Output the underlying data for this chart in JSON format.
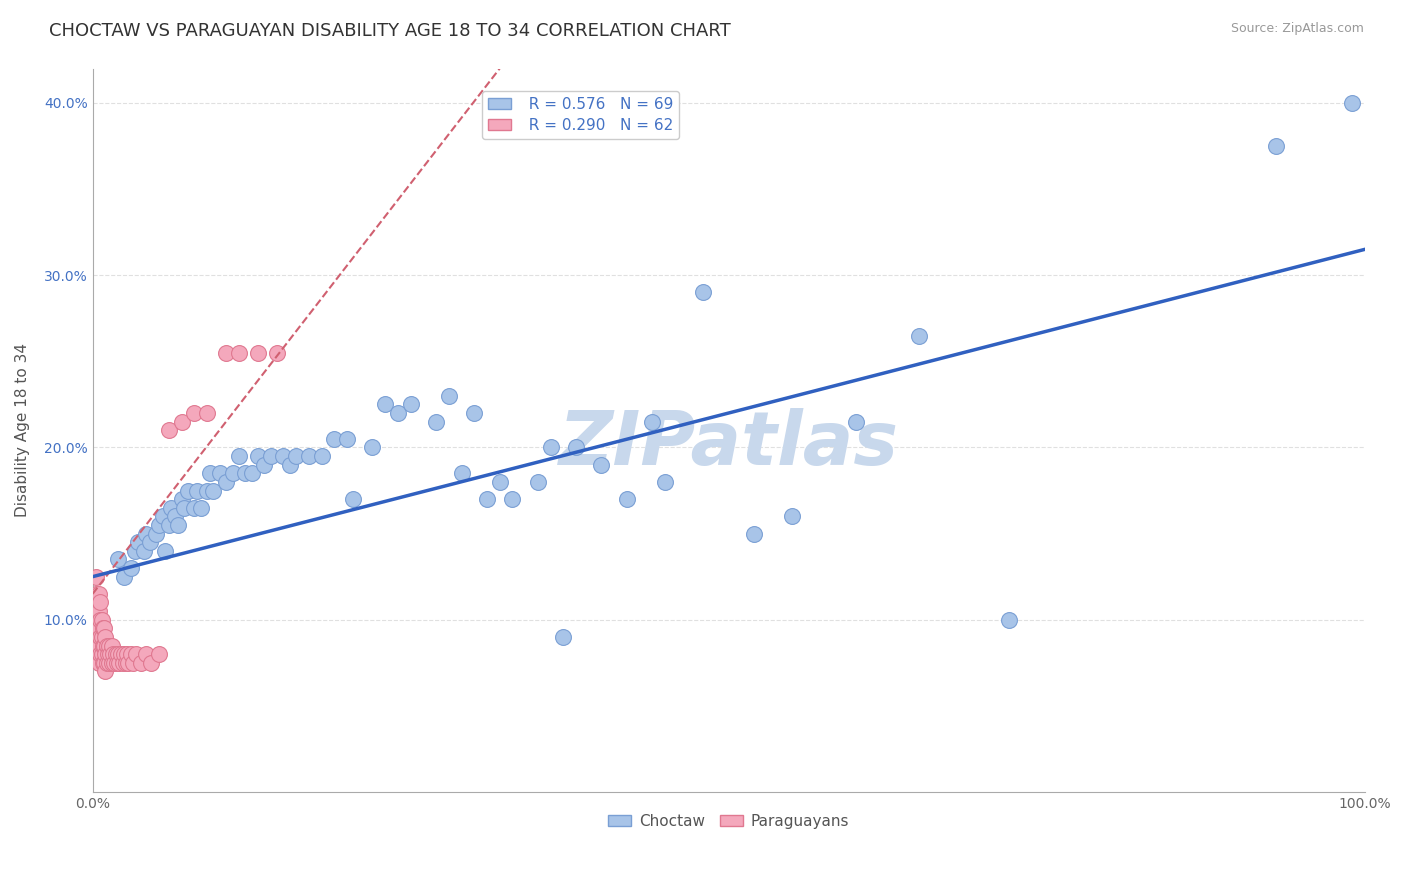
{
  "title": "CHOCTAW VS PARAGUAYAN DISABILITY AGE 18 TO 34 CORRELATION CHART",
  "source_text": "Source: ZipAtlas.com",
  "ylabel": "Disability Age 18 to 34",
  "xlim": [
    0,
    1.0
  ],
  "ylim": [
    0,
    0.42
  ],
  "xticks": [
    0.0,
    0.1,
    0.2,
    0.3,
    0.4,
    0.5,
    0.6,
    0.7,
    0.8,
    0.9,
    1.0
  ],
  "xticklabels": [
    "0.0%",
    "",
    "",
    "",
    "",
    "",
    "",
    "",
    "",
    "",
    "100.0%"
  ],
  "ytick_positions": [
    0.0,
    0.1,
    0.2,
    0.3,
    0.4
  ],
  "yticklabels": [
    "",
    "10.0%",
    "20.0%",
    "30.0%",
    "40.0%"
  ],
  "choctaw_color": "#a8c4e8",
  "paraguayan_color": "#f4a8bc",
  "choctaw_edge": "#7a9fd4",
  "paraguayan_edge": "#e07890",
  "trend_blue": "#3060c0",
  "trend_pink": "#d06070",
  "watermark_color": "#c8d8ec",
  "legend_r1": "R = 0.576",
  "legend_n1": "N = 69",
  "legend_r2": "R = 0.290",
  "legend_n2": "N = 62",
  "choctaw_label": "Choctaw",
  "paraguayan_label": "Paraguayans",
  "choctaw_x": [
    0.02,
    0.025,
    0.03,
    0.033,
    0.036,
    0.04,
    0.042,
    0.045,
    0.05,
    0.052,
    0.055,
    0.057,
    0.06,
    0.062,
    0.065,
    0.067,
    0.07,
    0.072,
    0.075,
    0.08,
    0.082,
    0.085,
    0.09,
    0.092,
    0.095,
    0.1,
    0.105,
    0.11,
    0.115,
    0.12,
    0.125,
    0.13,
    0.135,
    0.14,
    0.15,
    0.155,
    0.16,
    0.17,
    0.18,
    0.19,
    0.2,
    0.205,
    0.22,
    0.23,
    0.24,
    0.25,
    0.27,
    0.28,
    0.29,
    0.3,
    0.31,
    0.32,
    0.33,
    0.35,
    0.36,
    0.37,
    0.38,
    0.4,
    0.42,
    0.44,
    0.45,
    0.48,
    0.52,
    0.55,
    0.6,
    0.65,
    0.72,
    0.93,
    0.99
  ],
  "choctaw_y": [
    0.135,
    0.125,
    0.13,
    0.14,
    0.145,
    0.14,
    0.15,
    0.145,
    0.15,
    0.155,
    0.16,
    0.14,
    0.155,
    0.165,
    0.16,
    0.155,
    0.17,
    0.165,
    0.175,
    0.165,
    0.175,
    0.165,
    0.175,
    0.185,
    0.175,
    0.185,
    0.18,
    0.185,
    0.195,
    0.185,
    0.185,
    0.195,
    0.19,
    0.195,
    0.195,
    0.19,
    0.195,
    0.195,
    0.195,
    0.205,
    0.205,
    0.17,
    0.2,
    0.225,
    0.22,
    0.225,
    0.215,
    0.23,
    0.185,
    0.22,
    0.17,
    0.18,
    0.17,
    0.18,
    0.2,
    0.09,
    0.2,
    0.19,
    0.17,
    0.215,
    0.18,
    0.29,
    0.15,
    0.16,
    0.215,
    0.265,
    0.1,
    0.375,
    0.4
  ],
  "paraguayan_x": [
    0.003,
    0.003,
    0.003,
    0.004,
    0.004,
    0.004,
    0.005,
    0.005,
    0.005,
    0.005,
    0.005,
    0.006,
    0.006,
    0.006,
    0.006,
    0.007,
    0.007,
    0.007,
    0.008,
    0.008,
    0.008,
    0.009,
    0.009,
    0.009,
    0.01,
    0.01,
    0.01,
    0.011,
    0.011,
    0.012,
    0.013,
    0.013,
    0.014,
    0.015,
    0.015,
    0.016,
    0.017,
    0.018,
    0.019,
    0.02,
    0.021,
    0.022,
    0.024,
    0.025,
    0.026,
    0.027,
    0.028,
    0.03,
    0.032,
    0.034,
    0.038,
    0.042,
    0.046,
    0.052,
    0.06,
    0.07,
    0.08,
    0.09,
    0.105,
    0.115,
    0.13,
    0.145
  ],
  "paraguayan_y": [
    0.125,
    0.115,
    0.1,
    0.11,
    0.1,
    0.09,
    0.115,
    0.105,
    0.095,
    0.085,
    0.075,
    0.11,
    0.1,
    0.09,
    0.08,
    0.1,
    0.09,
    0.08,
    0.095,
    0.085,
    0.075,
    0.095,
    0.085,
    0.075,
    0.09,
    0.08,
    0.07,
    0.085,
    0.075,
    0.08,
    0.085,
    0.075,
    0.08,
    0.085,
    0.075,
    0.08,
    0.075,
    0.08,
    0.075,
    0.08,
    0.075,
    0.08,
    0.075,
    0.08,
    0.075,
    0.08,
    0.075,
    0.08,
    0.075,
    0.08,
    0.075,
    0.08,
    0.075,
    0.08,
    0.21,
    0.215,
    0.22,
    0.22,
    0.255,
    0.255,
    0.255,
    0.255
  ],
  "blue_trend_x0": 0.0,
  "blue_trend_y0": 0.125,
  "blue_trend_x1": 1.0,
  "blue_trend_y1": 0.315,
  "pink_trend_x0": 0.0,
  "pink_trend_y0": 0.115,
  "pink_trend_x1": 0.32,
  "pink_trend_y1": 0.42,
  "background_color": "#ffffff",
  "grid_color": "#e0e0e0",
  "title_fontsize": 13,
  "axis_label_fontsize": 11,
  "tick_fontsize": 10,
  "legend_fontsize": 11
}
